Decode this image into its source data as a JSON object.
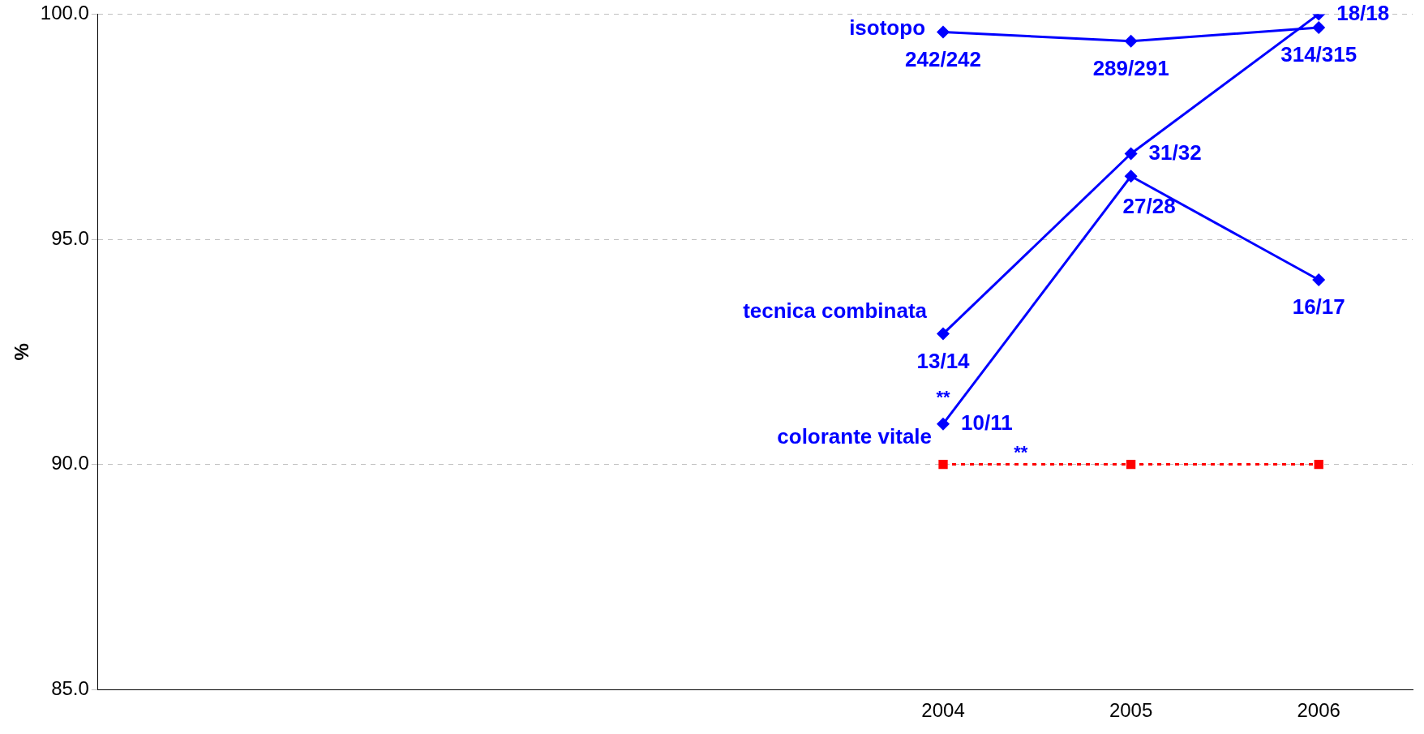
{
  "chart_data": {
    "type": "line",
    "ylabel": "%",
    "categories": [
      null,
      null,
      null,
      null,
      "2004",
      "2005",
      "2006"
    ],
    "series": [
      {
        "name": "isotopo",
        "color": "#0000ff",
        "marker": "diamond",
        "line_style": "solid",
        "values": [
          null,
          null,
          null,
          null,
          99.6,
          99.4,
          99.7
        ],
        "value_labels": [
          null,
          null,
          null,
          null,
          "242/242",
          "289/291",
          "314/315"
        ]
      },
      {
        "name": "tecnica combinata",
        "color": "#0000ff",
        "marker": "diamond",
        "line_style": "solid",
        "values": [
          null,
          null,
          null,
          null,
          92.9,
          96.9,
          100
        ],
        "value_labels": [
          null,
          null,
          null,
          null,
          "13/14",
          "31/32",
          "18/18"
        ]
      },
      {
        "name": "colorante vitale",
        "color": "#0000ff",
        "marker": "diamond",
        "line_style": "solid",
        "values": [
          null,
          null,
          null,
          null,
          90.9,
          96.4,
          94.1
        ],
        "value_labels": [
          null,
          null,
          null,
          null,
          "10/11",
          "27/28",
          "16/17"
        ]
      },
      {
        "color": "#ff0000",
        "marker": "square",
        "line_style": "dotted",
        "values": [
          null,
          null,
          null,
          null,
          90,
          90,
          90
        ]
      }
    ],
    "ylim": [
      85,
      100
    ],
    "yticks": [
      {
        "value": 85,
        "label": "85.0"
      },
      {
        "value": 90,
        "label": "90.0"
      },
      {
        "value": 95,
        "label": "95.0"
      },
      {
        "value": 100,
        "label": "100.0"
      }
    ],
    "grid": "y",
    "legend": false,
    "annotations": [
      "**",
      "**"
    ]
  }
}
